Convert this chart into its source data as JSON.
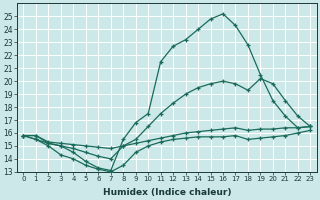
{
  "bg_color": "#cce8e8",
  "grid_color": "#ffffff",
  "line_color": "#1a6b5a",
  "xlim": [
    -0.5,
    23.5
  ],
  "ylim": [
    13,
    26
  ],
  "xlabel": "Humidex (Indice chaleur)",
  "line_A_x": [
    0,
    1,
    2,
    3,
    4,
    5,
    6,
    7,
    8,
    9,
    10,
    11,
    12,
    13,
    14,
    15,
    16,
    17,
    18,
    19,
    20,
    21,
    22,
    23
  ],
  "line_A_y": [
    15.8,
    15.8,
    15.2,
    15.0,
    14.5,
    13.8,
    13.3,
    13.1,
    15.5,
    16.8,
    17.5,
    21.5,
    22.7,
    23.2,
    24.0,
    24.8,
    25.2,
    24.3,
    22.8,
    20.5,
    18.5,
    17.3,
    16.4,
    16.5
  ],
  "line_B_x": [
    0,
    1,
    2,
    3,
    4,
    5,
    6,
    7,
    8,
    9,
    10,
    11,
    12,
    13,
    14,
    15,
    16,
    17,
    18,
    19,
    20,
    21,
    22,
    23
  ],
  "line_B_y": [
    15.8,
    15.5,
    15.2,
    15.0,
    14.8,
    14.5,
    14.2,
    14.0,
    15.0,
    15.5,
    16.5,
    17.5,
    18.3,
    19.0,
    19.5,
    19.8,
    20.0,
    19.8,
    19.3,
    20.2,
    19.8,
    18.5,
    17.3,
    16.5
  ],
  "line_C_x": [
    0,
    1,
    2,
    3,
    4,
    5,
    6,
    7,
    8,
    9,
    10,
    11,
    12,
    13,
    14,
    15,
    16,
    17,
    18,
    19,
    20,
    21,
    22,
    23
  ],
  "line_C_y": [
    15.8,
    15.8,
    15.3,
    15.2,
    15.1,
    15.0,
    14.9,
    14.8,
    15.0,
    15.2,
    15.4,
    15.6,
    15.8,
    16.0,
    16.1,
    16.2,
    16.3,
    16.4,
    16.2,
    16.3,
    16.3,
    16.4,
    16.4,
    16.5
  ],
  "line_D_x": [
    0,
    1,
    2,
    3,
    4,
    5,
    6,
    7,
    8,
    9,
    10,
    11,
    12,
    13,
    14,
    15,
    16,
    17,
    18,
    19,
    20,
    21,
    22,
    23
  ],
  "line_D_y": [
    15.8,
    15.5,
    15.0,
    14.3,
    14.0,
    13.5,
    13.2,
    13.0,
    13.5,
    14.5,
    15.0,
    15.3,
    15.5,
    15.6,
    15.7,
    15.7,
    15.7,
    15.8,
    15.5,
    15.6,
    15.7,
    15.8,
    16.0,
    16.2
  ]
}
